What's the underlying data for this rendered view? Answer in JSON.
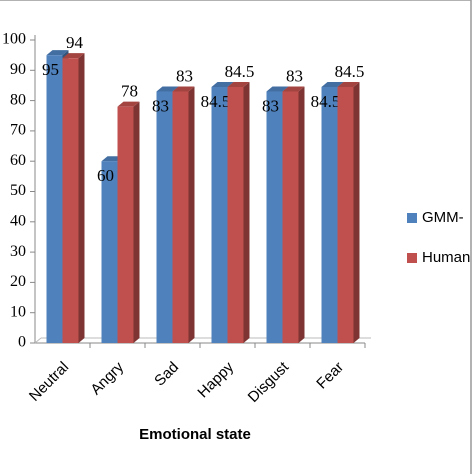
{
  "chart_data": {
    "type": "bar3d",
    "x_label": "Emotional state",
    "categories": [
      "Neutral",
      "Angry",
      "Sad",
      "Happy",
      "Disgust",
      "Fear"
    ],
    "series": [
      {
        "name": "GMM-",
        "color": "#4f81bd",
        "values": [
          95,
          60,
          83,
          84.5,
          83,
          84.5
        ]
      },
      {
        "name": "Human",
        "color": "#c0504d",
        "values": [
          94,
          78,
          83,
          84.5,
          83,
          84.5
        ]
      }
    ],
    "ylim": [
      0,
      100
    ],
    "yticks": [
      0,
      10,
      20,
      30,
      40,
      50,
      60,
      70,
      80,
      90,
      100
    ],
    "legend": "right"
  }
}
